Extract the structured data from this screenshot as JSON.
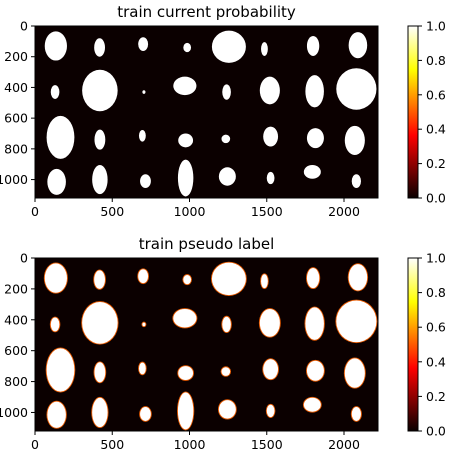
{
  "chart_data": [
    {
      "type": "heatmap",
      "title": "train current probability",
      "xlabel": "",
      "ylabel": "",
      "xlim": [
        0,
        2220
      ],
      "ylim": [
        1120,
        0
      ],
      "xticks": [
        "0",
        "500",
        "1000",
        "1500",
        "2000"
      ],
      "yticks": [
        "0",
        "200",
        "400",
        "600",
        "800",
        "1000"
      ],
      "colormap": "hot",
      "colorbar": {
        "range": [
          0,
          1
        ],
        "ticks": [
          "0.0",
          "0.2",
          "0.4",
          "0.6",
          "0.8",
          "1.0"
        ]
      },
      "blobs": [
        {
          "x": 135,
          "y": 130,
          "rx": 72,
          "ry": 95
        },
        {
          "x": 418,
          "y": 140,
          "rx": 35,
          "ry": 60
        },
        {
          "x": 700,
          "y": 118,
          "rx": 32,
          "ry": 45
        },
        {
          "x": 985,
          "y": 140,
          "rx": 25,
          "ry": 30
        },
        {
          "x": 1255,
          "y": 135,
          "rx": 110,
          "ry": 105
        },
        {
          "x": 1485,
          "y": 150,
          "rx": 22,
          "ry": 45
        },
        {
          "x": 1800,
          "y": 130,
          "rx": 40,
          "ry": 65
        },
        {
          "x": 2090,
          "y": 125,
          "rx": 60,
          "ry": 85
        },
        {
          "x": 130,
          "y": 430,
          "rx": 28,
          "ry": 45
        },
        {
          "x": 420,
          "y": 420,
          "rx": 115,
          "ry": 135
        },
        {
          "x": 705,
          "y": 430,
          "rx": 10,
          "ry": 12
        },
        {
          "x": 970,
          "y": 390,
          "rx": 75,
          "ry": 60
        },
        {
          "x": 1240,
          "y": 430,
          "rx": 28,
          "ry": 50
        },
        {
          "x": 1520,
          "y": 420,
          "rx": 65,
          "ry": 90
        },
        {
          "x": 1810,
          "y": 425,
          "rx": 60,
          "ry": 105
        },
        {
          "x": 2080,
          "y": 410,
          "rx": 130,
          "ry": 135
        },
        {
          "x": 165,
          "y": 725,
          "rx": 90,
          "ry": 140
        },
        {
          "x": 420,
          "y": 740,
          "rx": 35,
          "ry": 65
        },
        {
          "x": 695,
          "y": 715,
          "rx": 22,
          "ry": 38
        },
        {
          "x": 975,
          "y": 745,
          "rx": 48,
          "ry": 45
        },
        {
          "x": 1235,
          "y": 735,
          "rx": 28,
          "ry": 28
        },
        {
          "x": 1525,
          "y": 720,
          "rx": 48,
          "ry": 65
        },
        {
          "x": 1815,
          "y": 730,
          "rx": 55,
          "ry": 65
        },
        {
          "x": 2070,
          "y": 745,
          "rx": 65,
          "ry": 95
        },
        {
          "x": 140,
          "y": 1015,
          "rx": 60,
          "ry": 85
        },
        {
          "x": 420,
          "y": 1000,
          "rx": 50,
          "ry": 95
        },
        {
          "x": 715,
          "y": 1010,
          "rx": 35,
          "ry": 45
        },
        {
          "x": 975,
          "y": 990,
          "rx": 50,
          "ry": 120
        },
        {
          "x": 1245,
          "y": 980,
          "rx": 55,
          "ry": 60
        },
        {
          "x": 1525,
          "y": 990,
          "rx": 25,
          "ry": 40
        },
        {
          "x": 1795,
          "y": 950,
          "rx": 55,
          "ry": 45
        },
        {
          "x": 2080,
          "y": 1010,
          "rx": 30,
          "ry": 45
        }
      ]
    },
    {
      "type": "heatmap",
      "title": "train pseudo label",
      "xlabel": "",
      "ylabel": "",
      "xlim": [
        0,
        2220
      ],
      "ylim": [
        1120,
        0
      ],
      "xticks": [
        "0",
        "500",
        "1000",
        "1500",
        "2000"
      ],
      "yticks": [
        "0",
        "200",
        "400",
        "600",
        "800",
        "1000"
      ],
      "colormap": "hot",
      "colorbar": {
        "range": [
          0,
          1
        ],
        "ticks": [
          "0.0",
          "0.2",
          "0.4",
          "0.6",
          "0.8",
          "1.0"
        ]
      },
      "blobs": [
        {
          "x": 135,
          "y": 130,
          "rx": 72,
          "ry": 95
        },
        {
          "x": 418,
          "y": 140,
          "rx": 35,
          "ry": 60
        },
        {
          "x": 700,
          "y": 118,
          "rx": 32,
          "ry": 45
        },
        {
          "x": 985,
          "y": 140,
          "rx": 25,
          "ry": 30
        },
        {
          "x": 1255,
          "y": 135,
          "rx": 110,
          "ry": 105
        },
        {
          "x": 1485,
          "y": 150,
          "rx": 22,
          "ry": 45
        },
        {
          "x": 1800,
          "y": 130,
          "rx": 40,
          "ry": 65
        },
        {
          "x": 2090,
          "y": 125,
          "rx": 60,
          "ry": 85
        },
        {
          "x": 130,
          "y": 430,
          "rx": 28,
          "ry": 45
        },
        {
          "x": 420,
          "y": 420,
          "rx": 115,
          "ry": 135
        },
        {
          "x": 705,
          "y": 430,
          "rx": 10,
          "ry": 12
        },
        {
          "x": 970,
          "y": 390,
          "rx": 75,
          "ry": 60
        },
        {
          "x": 1240,
          "y": 430,
          "rx": 28,
          "ry": 50
        },
        {
          "x": 1520,
          "y": 420,
          "rx": 65,
          "ry": 90
        },
        {
          "x": 1810,
          "y": 425,
          "rx": 60,
          "ry": 105
        },
        {
          "x": 2080,
          "y": 410,
          "rx": 130,
          "ry": 135
        },
        {
          "x": 165,
          "y": 725,
          "rx": 90,
          "ry": 140
        },
        {
          "x": 420,
          "y": 740,
          "rx": 35,
          "ry": 65
        },
        {
          "x": 695,
          "y": 715,
          "rx": 22,
          "ry": 38
        },
        {
          "x": 975,
          "y": 745,
          "rx": 48,
          "ry": 45
        },
        {
          "x": 1235,
          "y": 735,
          "rx": 28,
          "ry": 28
        },
        {
          "x": 1525,
          "y": 720,
          "rx": 48,
          "ry": 65
        },
        {
          "x": 1815,
          "y": 730,
          "rx": 55,
          "ry": 65
        },
        {
          "x": 2070,
          "y": 745,
          "rx": 65,
          "ry": 95
        },
        {
          "x": 140,
          "y": 1015,
          "rx": 60,
          "ry": 85
        },
        {
          "x": 420,
          "y": 1000,
          "rx": 50,
          "ry": 95
        },
        {
          "x": 715,
          "y": 1010,
          "rx": 35,
          "ry": 45
        },
        {
          "x": 975,
          "y": 990,
          "rx": 50,
          "ry": 120
        },
        {
          "x": 1245,
          "y": 980,
          "rx": 55,
          "ry": 60
        },
        {
          "x": 1525,
          "y": 990,
          "rx": 25,
          "ry": 40
        },
        {
          "x": 1795,
          "y": 950,
          "rx": 55,
          "ry": 45
        },
        {
          "x": 2080,
          "y": 1010,
          "rx": 30,
          "ry": 45
        }
      ]
    }
  ]
}
